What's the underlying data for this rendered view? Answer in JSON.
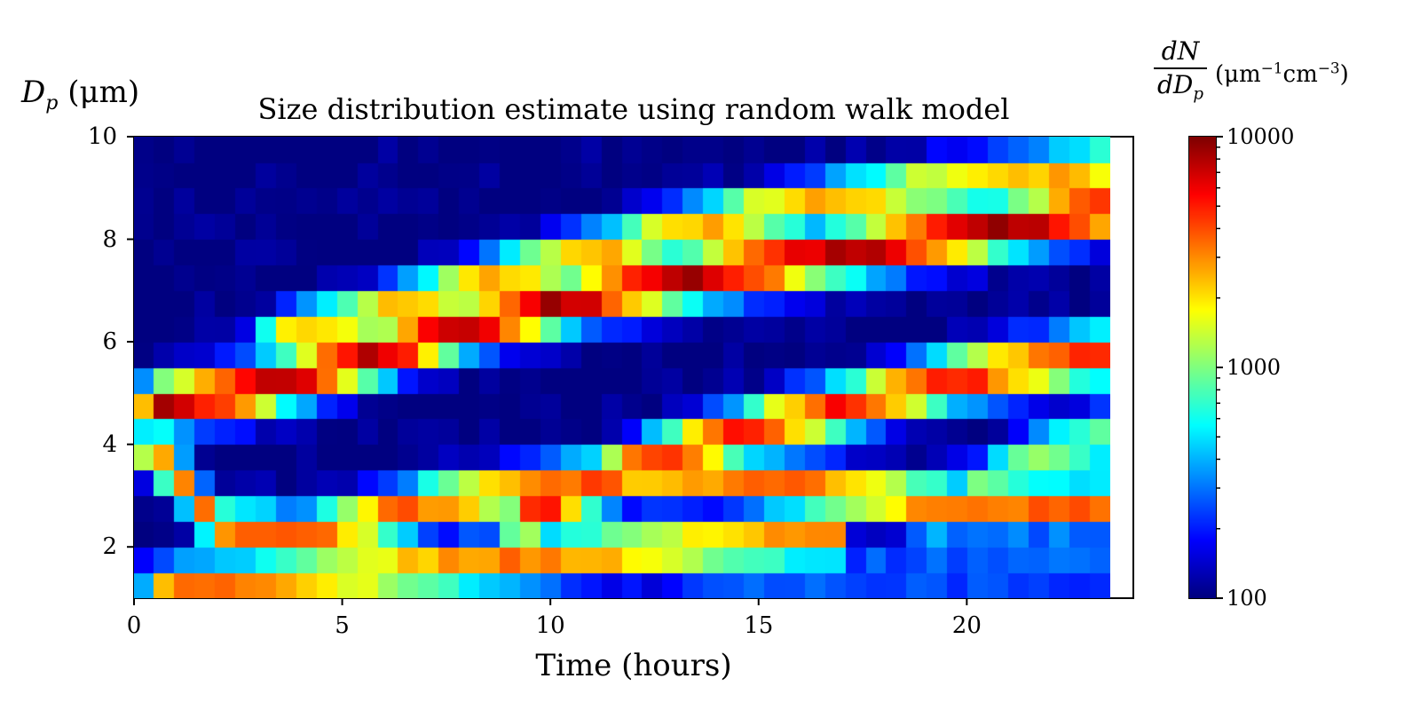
{
  "chart_data": {
    "type": "heatmap",
    "title": "Size distribution estimate using random walk model",
    "xlabel": "Time (hours)",
    "ylabel_symbol": "D",
    "ylabel_sub": "p",
    "ylabel_unit": "(μm)",
    "xlim": [
      0,
      24
    ],
    "ylim": [
      1,
      10
    ],
    "xticks": [
      0,
      5,
      10,
      15,
      20
    ],
    "yticks": [
      2,
      4,
      6,
      8,
      10
    ],
    "colorbar": {
      "label_num": "dN",
      "label_den_symbol": "dD",
      "label_den_sub": "p",
      "label_unit_prefix": "(μm",
      "label_exp1": "−1",
      "label_unit_mid": "cm",
      "label_exp2": "−3",
      "label_unit_suffix": ")",
      "scale": "log",
      "range": [
        100,
        10000
      ],
      "ticks": [
        "10000",
        "1000",
        "100"
      ],
      "colormap": "jet"
    },
    "grid": {
      "nx": 48,
      "ny": 18,
      "x_range": [
        0,
        23.7
      ],
      "y_range": [
        1,
        10
      ],
      "background_log10": 2.0,
      "bands": [
        {
          "comment": "lowest band",
          "pts": [
            [
              0.3,
              1.2
            ],
            [
              3,
              1.3
            ],
            [
              7,
              1.6
            ],
            [
              10,
              1.8
            ],
            [
              13,
              2.0
            ],
            [
              15,
              2.1
            ],
            [
              17,
              2.2
            ]
          ],
          "peak": 3.5,
          "width": 0.5,
          "t_start": 0.3,
          "t_end": 17
        },
        {
          "pts": [
            [
              0,
              4.0
            ],
            [
              1,
              3.5
            ],
            [
              2,
              2.4
            ],
            [
              4,
              2.2
            ],
            [
              7,
              2.8
            ],
            [
              10,
              3.2
            ],
            [
              12,
              3.4
            ],
            [
              14,
              3.4
            ],
            [
              16,
              3.2
            ],
            [
              20,
              2.8
            ],
            [
              23.7,
              2.8
            ]
          ],
          "peak": 3.55,
          "width": 0.5,
          "t_start": 0,
          "t_end": 23.7
        },
        {
          "pts": [
            [
              0,
              4.7
            ],
            [
              3,
              5.1
            ],
            [
              6,
              5.8
            ],
            [
              8,
              6.3
            ],
            [
              10,
              6.7
            ],
            [
              13,
              7.2
            ],
            [
              16,
              7.6
            ],
            [
              20,
              8.1
            ],
            [
              23.7,
              8.6
            ]
          ],
          "peak": 3.9,
          "width": 0.55,
          "t_start": 0,
          "t_end": 23.7
        },
        {
          "pts": [
            [
              3,
              6.0
            ],
            [
              6,
              6.6
            ],
            [
              9,
              7.3
            ],
            [
              12,
              7.9
            ],
            [
              15,
              8.5
            ],
            [
              19,
              9.0
            ],
            [
              23.7,
              9.4
            ]
          ],
          "peak": 3.4,
          "width": 0.5,
          "t_start": 3,
          "t_end": 23.7
        },
        {
          "pts": [
            [
              8,
              2.0
            ],
            [
              11,
              3.2
            ],
            [
              13,
              3.8
            ],
            [
              15,
              4.3
            ],
            [
              18,
              4.9
            ],
            [
              20,
              5.3
            ],
            [
              23.7,
              5.8
            ]
          ],
          "peak": 3.7,
          "width": 0.55,
          "t_start": 9,
          "t_end": 23.7
        },
        {
          "pts": [
            [
              20,
              2.9
            ],
            [
              22,
              3.8
            ],
            [
              23.7,
              4.2
            ]
          ],
          "peak": 3.0,
          "width": 0.6,
          "t_start": 19,
          "t_end": 23.7
        },
        {
          "pts": [
            [
              13,
              1.5
            ],
            [
              17,
              1.4
            ],
            [
              21,
              1.6
            ],
            [
              23.7,
              1.8
            ]
          ],
          "peak": 2.45,
          "width": 0.8,
          "t_start": 13,
          "t_end": 23.7
        }
      ]
    }
  }
}
